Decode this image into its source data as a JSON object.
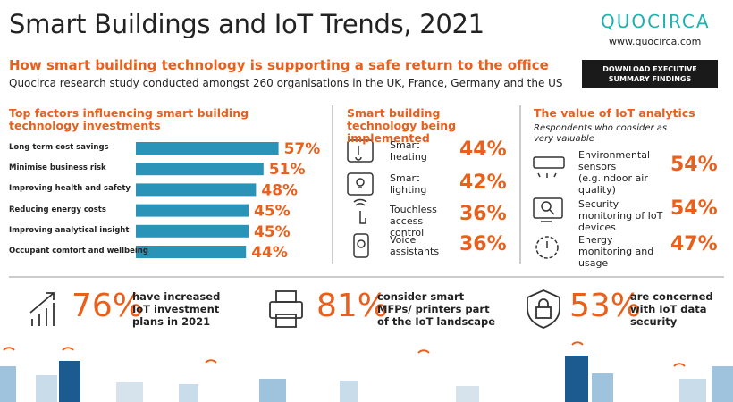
{
  "header": {
    "title": "Smart Buildings and IoT Trends, 2021",
    "subtitle": "How smart building technology is supporting a safe return to the office",
    "description": "Quocirca research study conducted amongst 260 organisations in the UK, France, Germany and the US",
    "brand": "QUOCIRCA",
    "url": "www.quocirca.com",
    "button": "DOWNLOAD EXECUTIVE SUMMARY FINDINGS"
  },
  "factors": {
    "title": "Top factors influencing smart building technology investments",
    "categories": [
      "Long term cost savings",
      "Minimise business risk",
      "Improving health and safety",
      "Reducing energy costs",
      "Improving analytical insight",
      "Occupant comfort and wellbeing"
    ],
    "values": [
      57,
      51,
      48,
      45,
      45,
      44
    ],
    "value_labels": [
      "57%",
      "51%",
      "48%",
      "45%",
      "45%",
      "44%"
    ],
    "color": "#2a93b8"
  },
  "technology": {
    "title": "Smart building technology being implemented",
    "items": [
      {
        "label": "Smart heating",
        "value": "44%"
      },
      {
        "label": "Smart lighting",
        "value": "42%"
      },
      {
        "label": "Touchless access control",
        "value": "36%"
      },
      {
        "label": "Voice assistants",
        "value": "36%"
      }
    ]
  },
  "analytics": {
    "title": "The value of IoT analytics",
    "subtitle": "Respondents who consider as very valuable",
    "items": [
      {
        "label": "Environmental sensors (e.g.indoor air quality)",
        "value": "54%"
      },
      {
        "label": "Security monitoring of IoT devices",
        "value": "54%"
      },
      {
        "label": "Energy monitoring and usage",
        "value": "47%"
      }
    ]
  },
  "stats": [
    {
      "value": "76%",
      "text": "have increased IoT investment plans in 2021"
    },
    {
      "value": "81%",
      "text": "consider smart MFPs/ printers part of the IoT landscape"
    },
    {
      "value": "53%",
      "text": "are concerned with IoT data security"
    }
  ]
}
